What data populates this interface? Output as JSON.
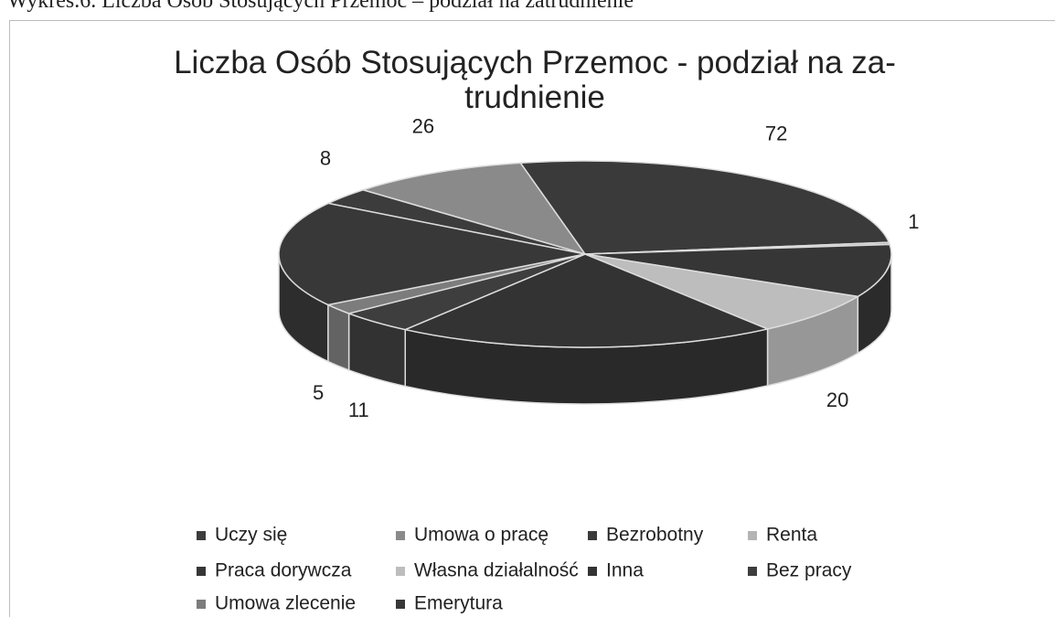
{
  "heading": "Wykres.6. Liczba Osób Stosujących Przemoc – podział na zatrudnienie",
  "chart_data": {
    "type": "pie3d",
    "title": "Liczba Osób Stosujących Przemoc - podział na za-\ntrudnienie",
    "categories": [
      "Uczy się",
      "Umowa o pracę",
      "Bezrobotny",
      "Renta",
      "Praca dorywcza",
      "Własna działalność",
      "Inna",
      "Bez pracy",
      "Umowa zlecenie",
      "Emerytura"
    ],
    "values": [
      8,
      26,
      72,
      1,
      25,
      20,
      55,
      11,
      5,
      50
    ],
    "value_labels": [
      "8",
      "26",
      "72",
      "1",
      null,
      "20",
      null,
      "11",
      "5",
      null
    ],
    "colors": [
      "#3c3c3c",
      "#8a8a8a",
      "#3a3a3a",
      "#b4b4b4",
      "#363636",
      "#bdbdbd",
      "#333333",
      "#3e3e3e",
      "#7c7c7c",
      "#383838"
    ],
    "legend": "bottom"
  }
}
